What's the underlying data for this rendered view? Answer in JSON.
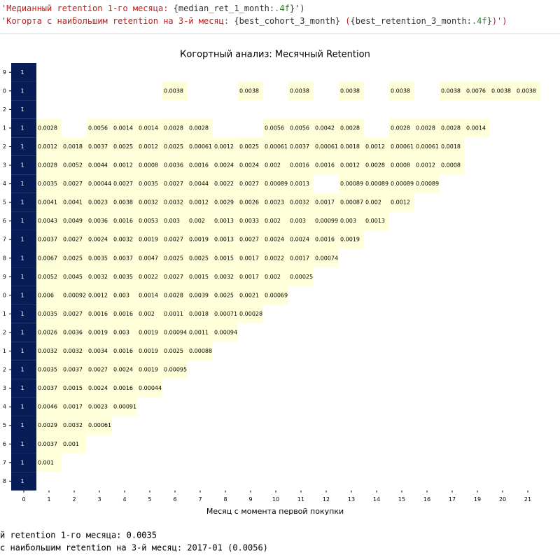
{
  "code_lines": [
    [
      "'Медианный retention 1-го месяца: ",
      "{median_ret_1_month:",
      ".4f",
      "}')"
    ],
    [
      "'Когорта с наибольшим retention на 3-й месяц: ",
      "{best_cohort_3_month}",
      " (",
      "{best_retention_3_month:",
      ".4f",
      "}",
      ")')"
    ]
  ],
  "output_lines": [
    "й retention 1-го месяца: 0.0035",
    "с наибольшим retention на 3-й месяц: 2017-01 (0.0056)"
  ],
  "chart_data": {
    "type": "heatmap",
    "title": "Когортный анализ: Месячный Retention",
    "x_label": "Месяц с момента первой покупки",
    "categories": [
      0,
      1,
      2,
      3,
      4,
      5,
      6,
      7,
      8,
      9,
      10,
      11,
      12,
      13,
      14,
      15,
      16,
      17,
      19,
      20,
      21
    ],
    "rows": [
      "9",
      "0",
      "2",
      "1",
      "2",
      "3",
      "4",
      "5",
      "6",
      "7",
      "8",
      "9",
      "0",
      "1",
      "2",
      "1",
      "2",
      "3",
      "4",
      "5",
      "6",
      "7",
      "8"
    ],
    "color_low": "#ffffd9",
    "color_high": "#081d58",
    "z": [
      [
        1,
        null,
        null,
        null,
        null,
        null,
        null,
        null,
        null,
        null,
        null,
        null,
        null,
        null,
        null,
        null,
        null,
        null,
        null,
        null,
        null
      ],
      [
        1,
        null,
        null,
        null,
        null,
        null,
        0.0038,
        null,
        null,
        0.0038,
        null,
        0.0038,
        null,
        0.0038,
        null,
        0.0038,
        null,
        0.0038,
        0.0076,
        0.0038,
        0.0038
      ],
      [
        1,
        null,
        null,
        null,
        null,
        null,
        null,
        null,
        null,
        null,
        null,
        null,
        null,
        null,
        null,
        null,
        null,
        null,
        null,
        null,
        null
      ],
      [
        1,
        0.0028,
        null,
        0.0056,
        0.0014,
        0.0014,
        0.0028,
        0.0028,
        null,
        null,
        0.0056,
        0.0056,
        0.0042,
        0.0028,
        null,
        0.0028,
        0.0028,
        0.0028,
        0.0014,
        null,
        null
      ],
      [
        1,
        0.0012,
        0.0018,
        0.0037,
        0.0025,
        0.0012,
        0.0025,
        0.00061,
        0.0012,
        0.0025,
        0.00061,
        0.0037,
        0.00061,
        0.0018,
        0.0012,
        0.00061,
        0.00061,
        0.0018,
        null,
        null,
        null
      ],
      [
        1,
        0.0028,
        0.0052,
        0.0044,
        0.0012,
        0.0008,
        0.0036,
        0.0016,
        0.0024,
        0.0024,
        0.002,
        0.0016,
        0.0016,
        0.0012,
        0.0028,
        0.0008,
        0.0012,
        0.0008,
        null,
        null,
        null
      ],
      [
        1,
        0.0035,
        0.0027,
        0.00044,
        0.0027,
        0.0035,
        0.0027,
        0.0044,
        0.0022,
        0.0027,
        0.00089,
        0.0013,
        null,
        0.00089,
        0.00089,
        0.00089,
        0.00089,
        null,
        null,
        null,
        null
      ],
      [
        1,
        0.0041,
        0.0041,
        0.0023,
        0.0038,
        0.0032,
        0.0032,
        0.0012,
        0.0029,
        0.0026,
        0.0023,
        0.0032,
        0.0017,
        0.00087,
        0.002,
        0.0012,
        null,
        null,
        null,
        null,
        null
      ],
      [
        1,
        0.0043,
        0.0049,
        0.0036,
        0.0016,
        0.0053,
        0.003,
        0.002,
        0.0013,
        0.0033,
        0.002,
        0.003,
        0.00099,
        0.003,
        0.0013,
        null,
        null,
        null,
        null,
        null,
        null
      ],
      [
        1,
        0.0037,
        0.0027,
        0.0024,
        0.0032,
        0.0019,
        0.0027,
        0.0019,
        0.0013,
        0.0027,
        0.0024,
        0.0024,
        0.0016,
        0.0019,
        null,
        null,
        null,
        null,
        null,
        null,
        null
      ],
      [
        1,
        0.0067,
        0.0025,
        0.0035,
        0.0037,
        0.0047,
        0.0025,
        0.0025,
        0.0015,
        0.0017,
        0.0022,
        0.0017,
        0.00074,
        null,
        null,
        null,
        null,
        null,
        null,
        null,
        null
      ],
      [
        1,
        0.0052,
        0.0045,
        0.0032,
        0.0035,
        0.0022,
        0.0027,
        0.0015,
        0.0032,
        0.0017,
        0.002,
        0.00025,
        null,
        null,
        null,
        null,
        null,
        null,
        null,
        null,
        null
      ],
      [
        1,
        0.006,
        0.00092,
        0.0012,
        0.003,
        0.0014,
        0.0028,
        0.0039,
        0.0025,
        0.0021,
        0.00069,
        null,
        null,
        null,
        null,
        null,
        null,
        null,
        null,
        null,
        null
      ],
      [
        1,
        0.0035,
        0.0027,
        0.0016,
        0.0016,
        0.002,
        0.0011,
        0.0018,
        0.00071,
        0.00028,
        null,
        null,
        null,
        null,
        null,
        null,
        null,
        null,
        null,
        null,
        null
      ],
      [
        1,
        0.0026,
        0.0036,
        0.0019,
        0.003,
        0.0019,
        0.00094,
        0.0011,
        0.00094,
        null,
        null,
        null,
        null,
        null,
        null,
        null,
        null,
        null,
        null,
        null,
        null
      ],
      [
        1,
        0.0032,
        0.0032,
        0.0034,
        0.0016,
        0.0019,
        0.0025,
        0.00088,
        null,
        null,
        null,
        null,
        null,
        null,
        null,
        null,
        null,
        null,
        null,
        null,
        null
      ],
      [
        1,
        0.0035,
        0.0037,
        0.0027,
        0.0024,
        0.0019,
        0.00095,
        null,
        null,
        null,
        null,
        null,
        null,
        null,
        null,
        null,
        null,
        null,
        null,
        null,
        null
      ],
      [
        1,
        0.0037,
        0.0015,
        0.0024,
        0.0016,
        0.00044,
        null,
        null,
        null,
        null,
        null,
        null,
        null,
        null,
        null,
        null,
        null,
        null,
        null,
        null,
        null
      ],
      [
        1,
        0.0046,
        0.0017,
        0.0023,
        0.00091,
        null,
        null,
        null,
        null,
        null,
        null,
        null,
        null,
        null,
        null,
        null,
        null,
        null,
        null,
        null,
        null
      ],
      [
        1,
        0.0029,
        0.0032,
        0.00061,
        null,
        null,
        null,
        null,
        null,
        null,
        null,
        null,
        null,
        null,
        null,
        null,
        null,
        null,
        null,
        null,
        null
      ],
      [
        1,
        0.0037,
        0.001,
        null,
        null,
        null,
        null,
        null,
        null,
        null,
        null,
        null,
        null,
        null,
        null,
        null,
        null,
        null,
        null,
        null,
        null
      ],
      [
        1,
        0.001,
        null,
        null,
        null,
        null,
        null,
        null,
        null,
        null,
        null,
        null,
        null,
        null,
        null,
        null,
        null,
        null,
        null,
        null,
        null
      ],
      [
        1,
        null,
        null,
        null,
        null,
        null,
        null,
        null,
        null,
        null,
        null,
        null,
        null,
        null,
        null,
        null,
        null,
        null,
        null,
        null,
        null
      ]
    ]
  }
}
